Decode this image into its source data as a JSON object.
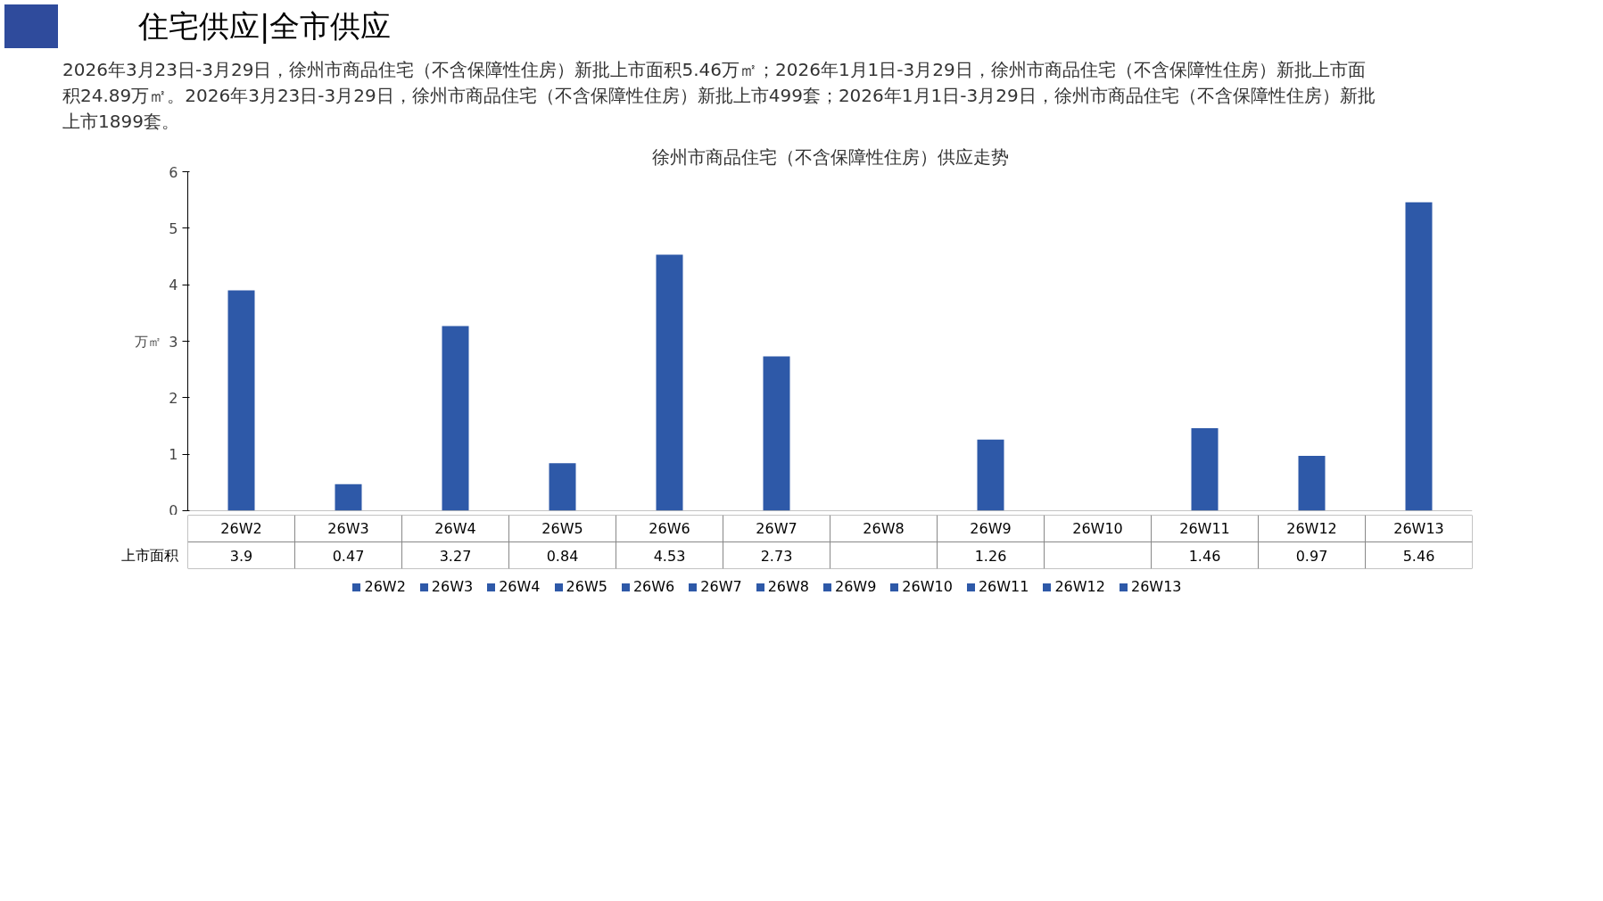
{
  "chart_data": {
    "type": "bar",
    "title": "徐州市商品住宅（不含保障性住房）供应走势",
    "annotations": [
      "住宅供应|全市供应",
      "2026年3月23日-3月29日，徐州市商品住宅（不含保障性住房）新批上市面积5.46万㎡；2026年1月1日-3月29日，徐州市商品住宅（不含保障性住房）新批上市面积24.89万㎡。2026年3月23日-3月29日，徐州市商品住宅（不含保障性住房）新批上市499套；2026年1月1日-3月29日，徐州市商品住宅（不含保障性住房）新批上市1899套。"
    ],
    "ylabel": "万㎡",
    "categories": [
      "26W2",
      "26W3",
      "26W4",
      "26W5",
      "26W6",
      "26W7",
      "26W8",
      "26W9",
      "26W10",
      "26W11",
      "26W12",
      "26W13"
    ],
    "series": [
      {
        "name": "上市面积",
        "color": "#2e59a8",
        "values": [
          3.9,
          0.47,
          3.27,
          0.84,
          4.53,
          2.73,
          null,
          1.26,
          null,
          1.46,
          0.97,
          5.46
        ]
      }
    ],
    "ylim": [
      0,
      6
    ],
    "yticks": [
      0,
      1,
      2,
      3,
      4,
      5,
      6
    ],
    "grid": false,
    "legend": "bottom",
    "data_labels": true
  }
}
